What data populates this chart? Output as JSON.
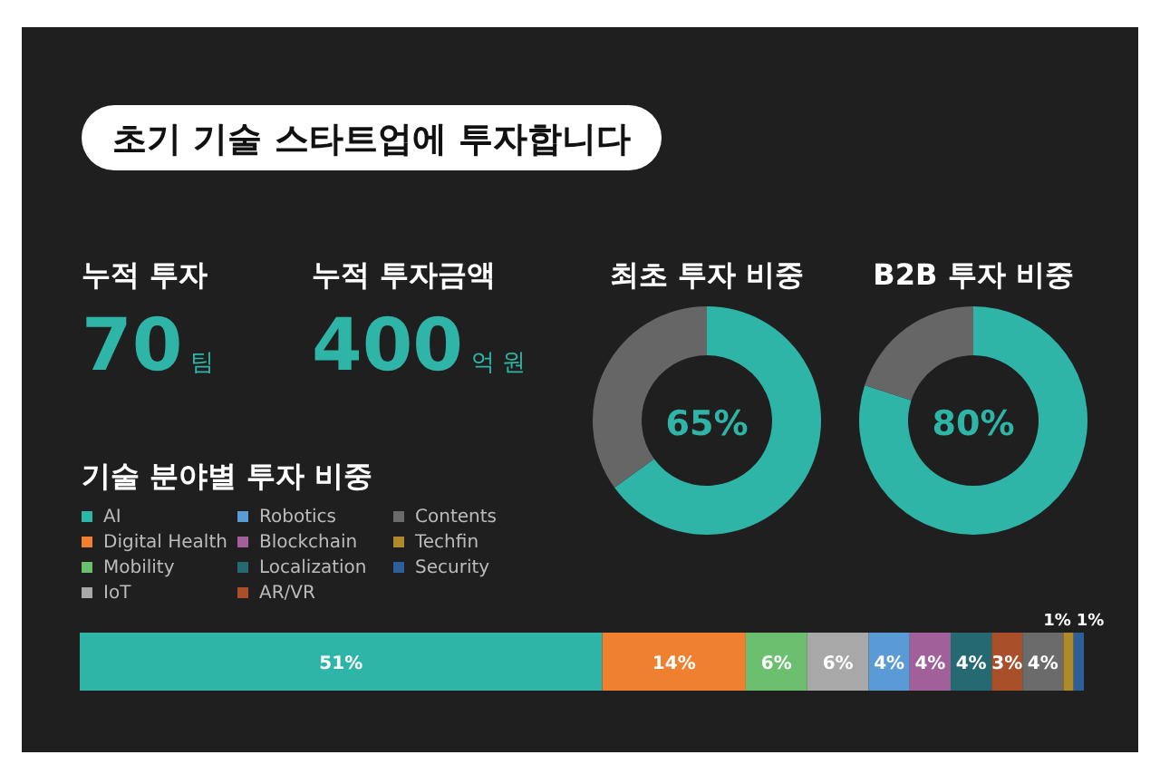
{
  "chart_data": [
    {
      "type": "other",
      "title": "초기 기술 스타트업에 투자합니다",
      "annotations": [
        "누적 투자",
        "70",
        "팀",
        "누적 투자금액",
        "400",
        "억 원"
      ]
    },
    {
      "type": "donut",
      "title": "최초 투자 비중",
      "categories": [
        null,
        null
      ],
      "values": [
        65,
        35
      ],
      "colors": [
        "#2fb5a8",
        "#666666"
      ],
      "value_labels": [
        "65%",
        null
      ]
    },
    {
      "type": "donut",
      "title": "B2B 투자 비중",
      "categories": [
        null,
        null
      ],
      "values": [
        80,
        20
      ],
      "colors": [
        "#2fb5a8",
        "#666666"
      ],
      "value_labels": [
        "80%",
        null
      ]
    },
    {
      "type": "bar",
      "title": "기술 분야별 투자 비중",
      "orientation": "horizontal",
      "stacked": true,
      "categories": [
        null
      ],
      "legend": "top left",
      "series": [
        {
          "name": "AI",
          "color": "#2fb5a8",
          "values": [
            51
          ],
          "value_labels": [
            "51%"
          ]
        },
        {
          "name": "Digital Health",
          "color": "#ef8030",
          "values": [
            14
          ],
          "value_labels": [
            "14%"
          ]
        },
        {
          "name": "Mobility",
          "color": "#6cbf6f",
          "values": [
            6
          ],
          "value_labels": [
            "6%"
          ]
        },
        {
          "name": "IoT",
          "color": "#a8a8a8",
          "values": [
            6
          ],
          "value_labels": [
            "6%"
          ]
        },
        {
          "name": "Robotics",
          "color": "#5b9bd5",
          "values": [
            4
          ],
          "value_labels": [
            "4%"
          ]
        },
        {
          "name": "Blockchain",
          "color": "#a1609a",
          "values": [
            4
          ],
          "value_labels": [
            "4%"
          ]
        },
        {
          "name": "Localization",
          "color": "#256a72",
          "values": [
            4
          ],
          "value_labels": [
            "4%"
          ]
        },
        {
          "name": "AR/VR",
          "color": "#a9502a",
          "values": [
            3
          ],
          "value_labels": [
            "3%"
          ]
        },
        {
          "name": "Contents",
          "color": "#6b6b6b",
          "values": [
            4
          ],
          "value_labels": [
            "4%"
          ]
        },
        {
          "name": "Techfin",
          "color": "#b08a2a",
          "values": [
            1
          ],
          "value_labels": [
            "1%"
          ]
        },
        {
          "name": "Security",
          "color": "#2d5f9a",
          "values": [
            1
          ],
          "value_labels": [
            "1%"
          ]
        }
      ]
    }
  ]
}
